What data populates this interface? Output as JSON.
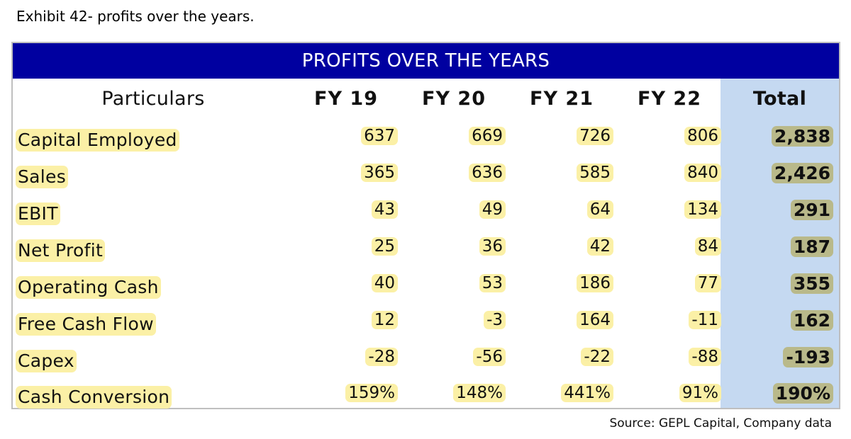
{
  "exhibit_title": "Exhibit 42- profits over the years.",
  "banner_title": "PROFITS OVER THE YEARS",
  "columns": {
    "particulars": "Particulars",
    "fy19": "FY 19",
    "fy20": "FY 20",
    "fy21": "FY 21",
    "fy22": "FY 22",
    "total": "Total"
  },
  "rows": [
    {
      "label": "Capital Employed",
      "fy19": "637",
      "fy20": "669",
      "fy21": "726",
      "fy22": "806",
      "total": "2,838"
    },
    {
      "label": "Sales",
      "fy19": "365",
      "fy20": "636",
      "fy21": "585",
      "fy22": "840",
      "total": "2,426"
    },
    {
      "label": "EBIT",
      "fy19": "43",
      "fy20": "49",
      "fy21": "64",
      "fy22": "134",
      "total": "291"
    },
    {
      "label": "Net Profit",
      "fy19": "25",
      "fy20": "36",
      "fy21": "42",
      "fy22": "84",
      "total": "187"
    },
    {
      "label": "Operating Cash",
      "fy19": "40",
      "fy20": "53",
      "fy21": "186",
      "fy22": "77",
      "total": "355"
    },
    {
      "label": "Free Cash Flow",
      "fy19": "12",
      "fy20": "-3",
      "fy21": "164",
      "fy22": "-11",
      "total": "162"
    },
    {
      "label": "Capex",
      "fy19": "-28",
      "fy20": "-56",
      "fy21": "-22",
      "fy22": "-88",
      "total": "-193"
    },
    {
      "label": "Cash Conversion",
      "fy19": "159%",
      "fy20": "148%",
      "fy21": "441%",
      "fy22": "91%",
      "total": "190%"
    }
  ],
  "source": "Source: GEPL Capital, Company data",
  "colors": {
    "banner": "#0000a0",
    "total_column": "#c5d9f1",
    "highlight": "#fbf0a6",
    "total_highlight": "#b9b98a"
  }
}
